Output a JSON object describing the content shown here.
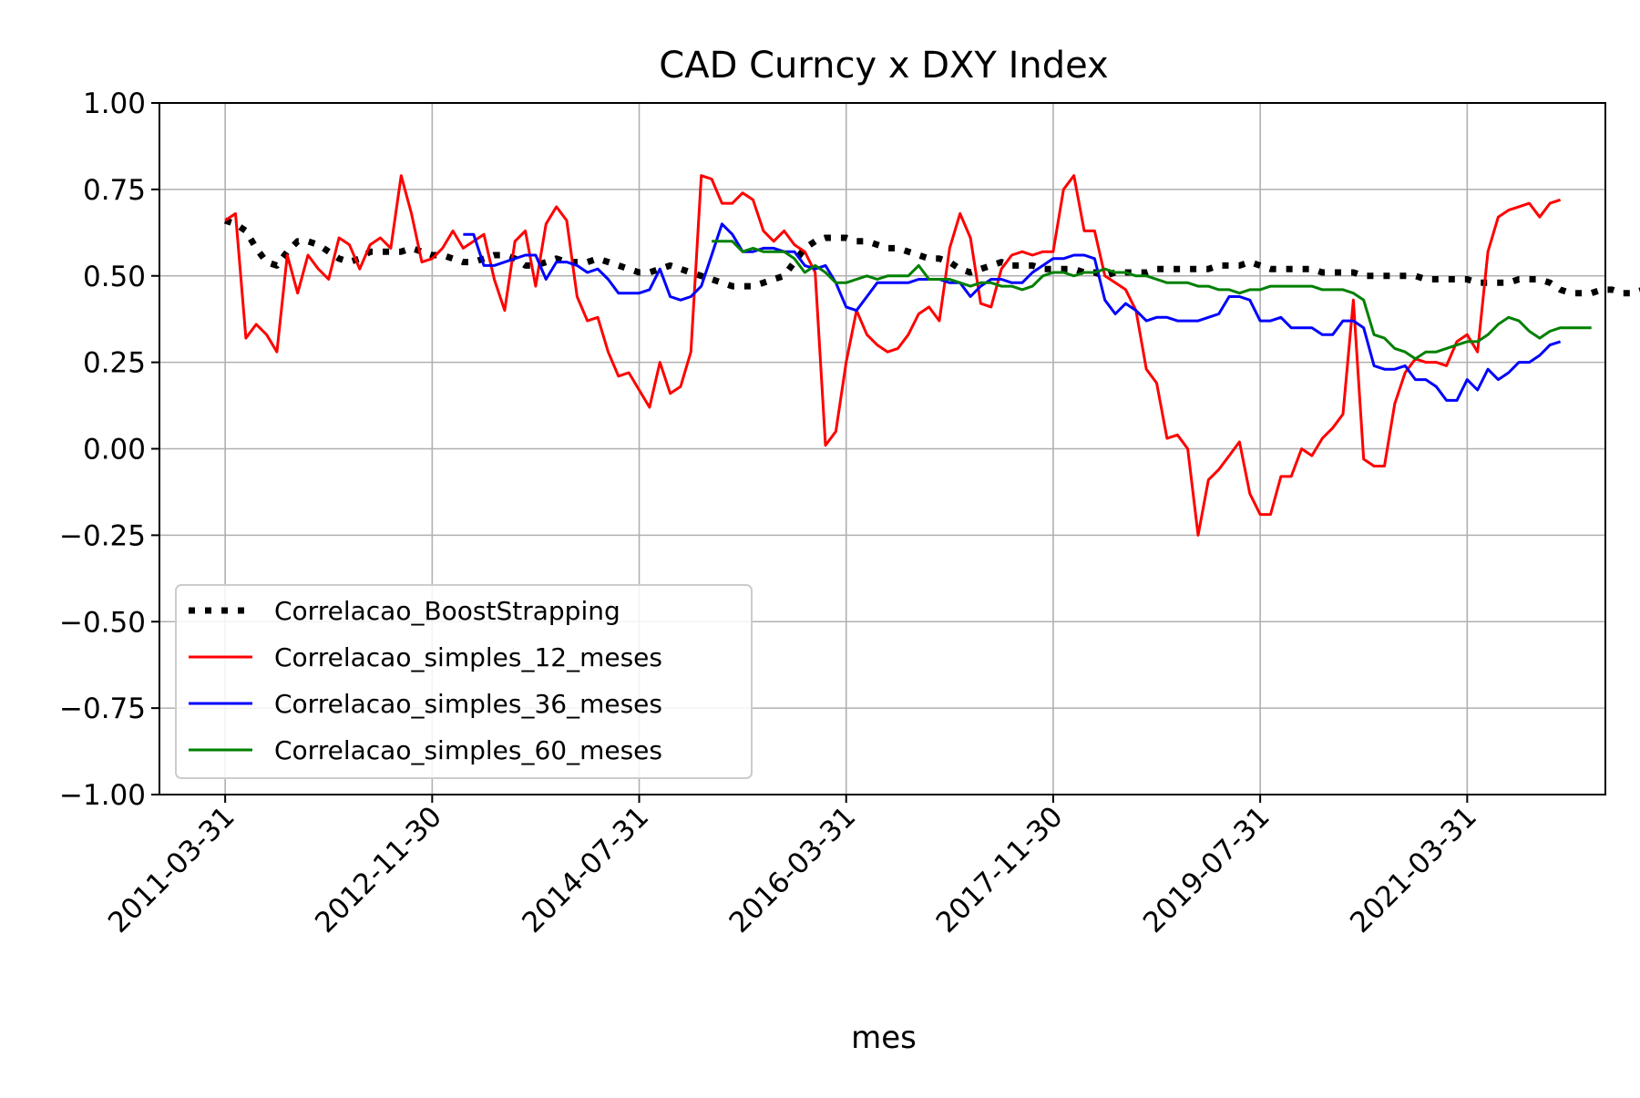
{
  "chart_data": {
    "type": "line",
    "title": "CAD Curncy x DXY Index",
    "xlabel": "mes",
    "ylabel": "",
    "ylim": [
      -1.0,
      1.0
    ],
    "yticks": [
      "1.00",
      "0.75",
      "0.50",
      "0.25",
      "0.00",
      "−0.25",
      "−0.50",
      "−0.75",
      "−1.00"
    ],
    "ytick_values": [
      1.0,
      0.75,
      0.5,
      0.25,
      0.0,
      -0.25,
      -0.5,
      -0.75,
      -1.0
    ],
    "xticks": [
      "2011-03-31",
      "2012-11-30",
      "2014-07-31",
      "2016-03-31",
      "2017-11-30",
      "2019-07-31",
      "2021-03-31"
    ],
    "x_start": "2011-03-31",
    "x_end": "2021-10-31",
    "x_frequency": "monthly",
    "grid": true,
    "legend_position": "lower-left",
    "series": [
      {
        "name": "Correlacao_BoostStrapping",
        "color": "#000000",
        "style": "dotted",
        "start": "2011-03-31",
        "values": [
          0.66,
          0.65,
          0.63,
          0.58,
          0.54,
          0.53,
          0.57,
          0.6,
          0.6,
          0.59,
          0.57,
          0.55,
          0.54,
          0.55,
          0.57,
          0.57,
          0.57,
          0.57,
          0.58,
          0.57,
          0.56,
          0.56,
          0.55,
          0.54,
          0.54,
          0.55,
          0.56,
          0.56,
          0.55,
          0.53,
          0.53,
          0.54,
          0.55,
          0.54,
          0.54,
          0.54,
          0.55,
          0.54,
          0.53,
          0.52,
          0.51,
          0.51,
          0.52,
          0.53,
          0.52,
          0.51,
          0.5,
          0.49,
          0.48,
          0.47,
          0.47,
          0.47,
          0.48,
          0.49,
          0.5,
          0.54,
          0.58,
          0.6,
          0.61,
          0.61,
          0.61,
          0.6,
          0.6,
          0.59,
          0.58,
          0.58,
          0.57,
          0.56,
          0.55,
          0.55,
          0.54,
          0.52,
          0.51,
          0.52,
          0.53,
          0.54,
          0.53,
          0.53,
          0.53,
          0.52,
          0.52,
          0.52,
          0.52,
          0.51,
          0.51,
          0.5,
          0.51,
          0.51,
          0.51,
          0.51,
          0.52,
          0.52,
          0.52,
          0.52,
          0.52,
          0.52,
          0.53,
          0.53,
          0.53,
          0.54,
          0.53,
          0.52,
          0.52,
          0.52,
          0.52,
          0.52,
          0.51,
          0.51,
          0.51,
          0.51,
          0.5,
          0.5,
          0.5,
          0.5,
          0.5,
          0.5,
          0.49,
          0.49,
          0.49,
          0.49,
          0.49,
          0.48,
          0.48,
          0.48,
          0.48,
          0.49,
          0.49,
          0.49,
          0.48,
          0.46,
          0.45,
          0.45,
          0.45,
          0.46,
          0.46,
          0.45,
          0.45,
          0.46,
          0.46,
          0.46,
          0.46,
          0.46,
          0.46,
          0.46,
          0.46,
          0.47,
          0.47,
          0.48,
          0.47,
          0.47,
          0.46
        ]
      },
      {
        "name": "Correlacao_simples_12_meses",
        "color": "#ff0000",
        "style": "solid",
        "start": "2011-03-31",
        "values": [
          0.66,
          0.68,
          0.32,
          0.36,
          0.33,
          0.28,
          0.56,
          0.45,
          0.56,
          0.52,
          0.49,
          0.61,
          0.59,
          0.52,
          0.59,
          0.61,
          0.58,
          0.79,
          0.68,
          0.54,
          0.55,
          0.58,
          0.63,
          0.58,
          0.6,
          0.62,
          0.49,
          0.4,
          0.6,
          0.63,
          0.47,
          0.65,
          0.7,
          0.66,
          0.44,
          0.37,
          0.38,
          0.28,
          0.21,
          0.22,
          0.17,
          0.12,
          0.25,
          0.16,
          0.18,
          0.28,
          0.79,
          0.78,
          0.71,
          0.71,
          0.74,
          0.72,
          0.63,
          0.6,
          0.63,
          0.59,
          0.57,
          0.51,
          0.01,
          0.05,
          0.25,
          0.4,
          0.33,
          0.3,
          0.28,
          0.29,
          0.33,
          0.39,
          0.41,
          0.37,
          0.58,
          0.68,
          0.61,
          0.42,
          0.41,
          0.52,
          0.56,
          0.57,
          0.56,
          0.57,
          0.57,
          0.75,
          0.79,
          0.63,
          0.63,
          0.5,
          0.48,
          0.46,
          0.4,
          0.23,
          0.19,
          0.03,
          0.04,
          0.0,
          -0.25,
          -0.09,
          -0.06,
          -0.02,
          0.02,
          -0.13,
          -0.19,
          -0.19,
          -0.08,
          -0.08,
          0.0,
          -0.02,
          0.03,
          0.06,
          0.1,
          0.43,
          -0.03,
          -0.05,
          -0.05,
          0.13,
          0.22,
          0.26,
          0.25,
          0.25,
          0.24,
          0.31,
          0.33,
          0.28,
          0.57,
          0.67,
          0.69,
          0.7,
          0.71,
          0.67,
          0.71,
          0.72
        ]
      },
      {
        "name": "Correlacao_simples_36_meses",
        "color": "#0000ff",
        "style": "solid",
        "start": "2013-02-28",
        "values": [
          0.62,
          0.62,
          0.53,
          0.53,
          0.54,
          0.55,
          0.56,
          0.56,
          0.49,
          0.54,
          0.54,
          0.53,
          0.51,
          0.52,
          0.49,
          0.45,
          0.45,
          0.45,
          0.46,
          0.52,
          0.44,
          0.43,
          0.44,
          0.47,
          0.56,
          0.65,
          0.62,
          0.57,
          0.57,
          0.58,
          0.58,
          0.57,
          0.57,
          0.53,
          0.52,
          0.53,
          0.48,
          0.41,
          0.4,
          0.44,
          0.48,
          0.48,
          0.48,
          0.48,
          0.49,
          0.49,
          0.49,
          0.48,
          0.48,
          0.44,
          0.47,
          0.49,
          0.49,
          0.48,
          0.48,
          0.51,
          0.53,
          0.55,
          0.55,
          0.56,
          0.56,
          0.55,
          0.43,
          0.39,
          0.42,
          0.4,
          0.37,
          0.38,
          0.38,
          0.37,
          0.37,
          0.37,
          0.38,
          0.39,
          0.44,
          0.44,
          0.43,
          0.37,
          0.37,
          0.38,
          0.35,
          0.35,
          0.35,
          0.33,
          0.33,
          0.37,
          0.37,
          0.35,
          0.24,
          0.23,
          0.23,
          0.24,
          0.2,
          0.2,
          0.18,
          0.14,
          0.14,
          0.2,
          0.17,
          0.23,
          0.2,
          0.22,
          0.25,
          0.25,
          0.27,
          0.3,
          0.31
        ]
      },
      {
        "name": "Correlacao_simples_60_meses",
        "color": "#008000",
        "style": "solid",
        "start": "2015-02-28",
        "values": [
          0.6,
          0.6,
          0.6,
          0.57,
          0.58,
          0.57,
          0.57,
          0.57,
          0.55,
          0.51,
          0.53,
          0.51,
          0.48,
          0.48,
          0.49,
          0.5,
          0.49,
          0.5,
          0.5,
          0.5,
          0.53,
          0.49,
          0.49,
          0.49,
          0.48,
          0.47,
          0.48,
          0.48,
          0.47,
          0.47,
          0.46,
          0.47,
          0.5,
          0.51,
          0.51,
          0.5,
          0.51,
          0.51,
          0.52,
          0.51,
          0.51,
          0.5,
          0.5,
          0.49,
          0.48,
          0.48,
          0.48,
          0.47,
          0.47,
          0.46,
          0.46,
          0.45,
          0.46,
          0.46,
          0.47,
          0.47,
          0.47,
          0.47,
          0.47,
          0.46,
          0.46,
          0.46,
          0.45,
          0.43,
          0.33,
          0.32,
          0.29,
          0.28,
          0.26,
          0.28,
          0.28,
          0.29,
          0.3,
          0.31,
          0.31,
          0.33,
          0.36,
          0.38,
          0.37,
          0.34,
          0.32,
          0.34,
          0.35,
          0.35,
          0.35,
          0.35
        ]
      }
    ]
  }
}
